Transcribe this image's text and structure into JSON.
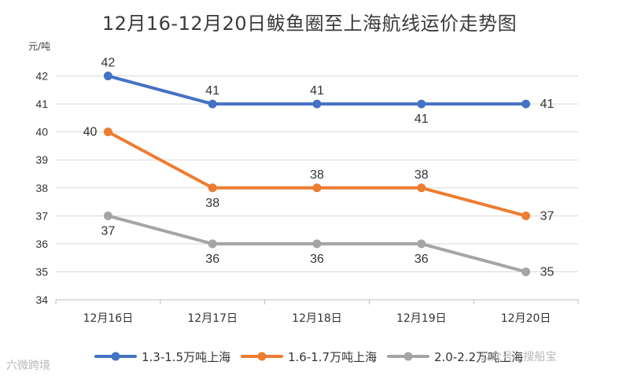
{
  "chart_data": {
    "type": "line",
    "title": "12月16-12月20日鲅鱼圈至上海航线运价走势图",
    "ylabel": "元/吨",
    "xlabel": "",
    "categories": [
      "12月16日",
      "12月17日",
      "12月18日",
      "12月19日",
      "12月20日"
    ],
    "ylim": [
      34,
      43
    ],
    "yticks": [
      34,
      35,
      36,
      37,
      38,
      39,
      40,
      41,
      42
    ],
    "grid": true,
    "legend": "bottom",
    "series": [
      {
        "name": "1.3-1.5万吨上海",
        "values": [
          42,
          41,
          41,
          41,
          41
        ],
        "color": "#4472C4",
        "label_pos": [
          "above",
          "above",
          "above",
          "below",
          "right"
        ]
      },
      {
        "name": "1.6-1.7万吨上海",
        "values": [
          40,
          38,
          38,
          38,
          37
        ],
        "color": "#ED7D31",
        "label_pos": [
          "left",
          "below",
          "above",
          "above",
          "right"
        ]
      },
      {
        "name": "2.0-2.2万吨上海",
        "values": [
          37,
          36,
          36,
          36,
          35
        ],
        "color": "#A5A5A5",
        "label_pos": [
          "below",
          "below",
          "below",
          "below",
          "right"
        ]
      }
    ]
  },
  "watermarks": {
    "left": "六微跨境",
    "right": "公众号 · 搜船宝"
  }
}
